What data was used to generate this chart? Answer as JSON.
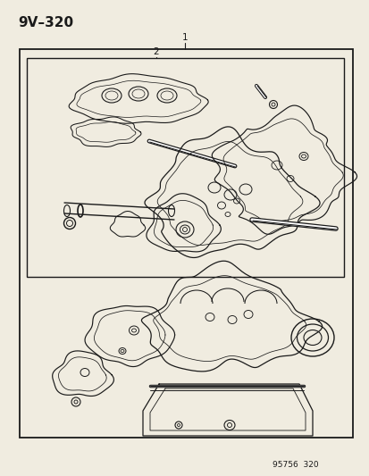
{
  "title_code": "9V–320",
  "footer_text": "95756  320",
  "label1": "1",
  "label2": "2",
  "bg_color": "#f0ece0",
  "line_color": "#1a1a1a",
  "fig_w": 4.14,
  "fig_h": 5.33,
  "dpi": 100
}
